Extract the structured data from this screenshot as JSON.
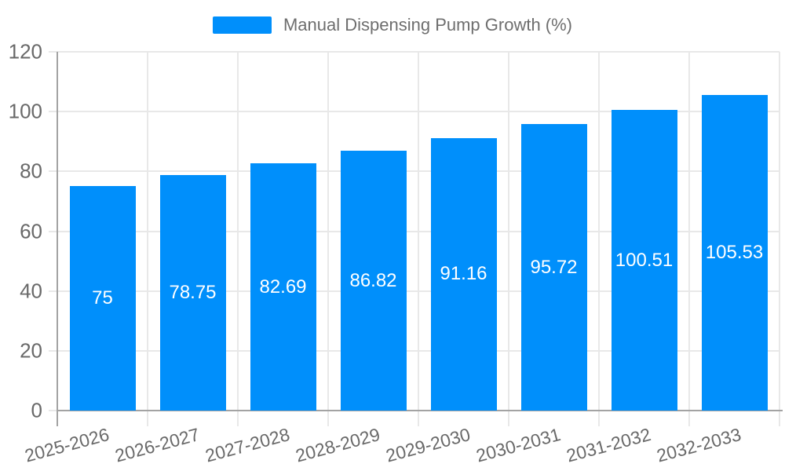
{
  "chart_data": {
    "type": "bar",
    "title": "Manual Dispensing Pump Growth (%)",
    "categories": [
      "2025-2026",
      "2026-2027",
      "2027-2028",
      "2028-2029",
      "2029-2030",
      "2030-2031",
      "2031-2032",
      "2032-2033"
    ],
    "series": [
      {
        "name": "Manual Dispensing Pump Growth (%)",
        "values": [
          75,
          78.75,
          82.69,
          86.82,
          91.16,
          95.72,
          100.51,
          105.53
        ]
      }
    ],
    "value_labels": [
      "75",
      "78.75",
      "82.69",
      "86.82",
      "91.16",
      "95.72",
      "100.51",
      "105.53"
    ],
    "xlabel": "",
    "ylabel": "",
    "ylim": [
      0,
      120
    ],
    "yticks": [
      0,
      20,
      40,
      60,
      80,
      100,
      120
    ],
    "grid": true,
    "legend_position": "top",
    "x_label_rotation": -15,
    "colors": {
      "bar": "#008FFB",
      "grid": "#e8e8e8",
      "axis": "#a3a3a3",
      "tick_text": "#696969",
      "legend_text": "#6e6e6e",
      "value_text": "#ffffff",
      "background": "#ffffff"
    }
  }
}
